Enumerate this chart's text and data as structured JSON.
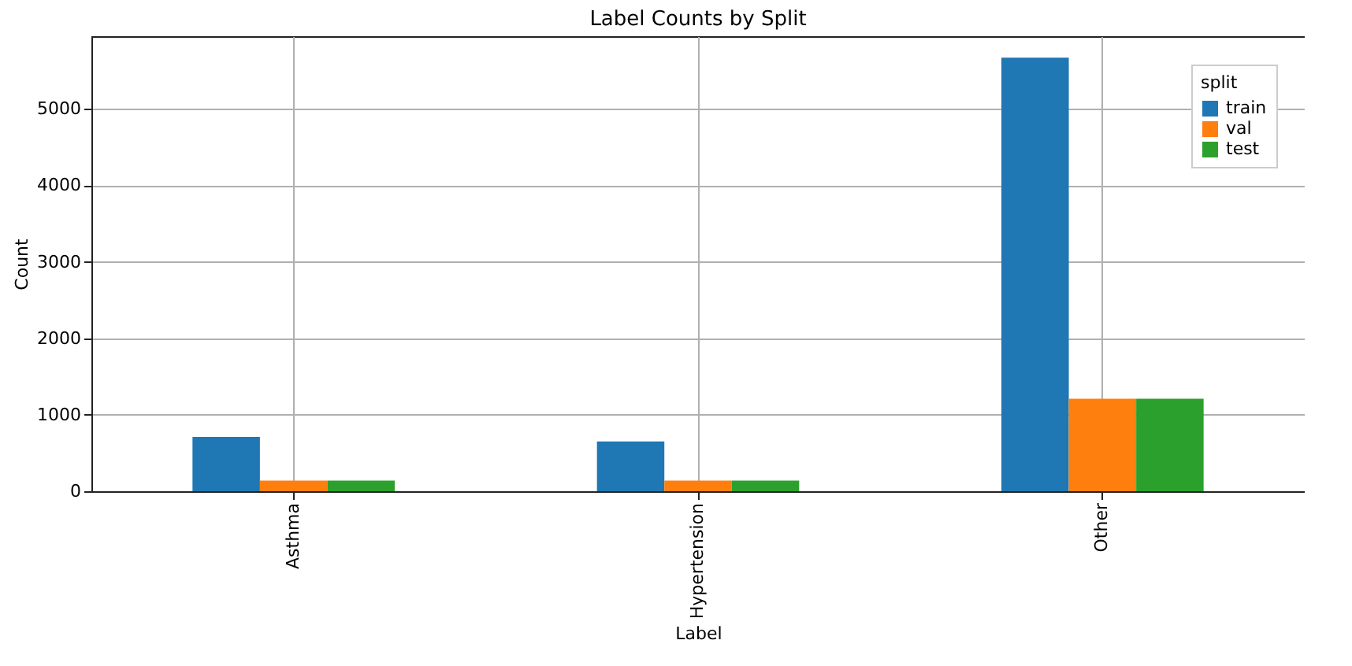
{
  "chart_data": {
    "type": "bar",
    "title": "Label Counts by Split",
    "xlabel": "Label",
    "ylabel": "Count",
    "legend_title": "split",
    "categories": [
      "Asthma",
      "Hypertension",
      "Other"
    ],
    "series": [
      {
        "name": "train",
        "color": "#1f77b4",
        "values": [
          710,
          650,
          5670
        ]
      },
      {
        "name": "val",
        "color": "#ff7f0e",
        "values": [
          140,
          140,
          1210
        ]
      },
      {
        "name": "test",
        "color": "#2ca02c",
        "values": [
          140,
          140,
          1210
        ]
      }
    ],
    "ylim": [
      0,
      5950
    ],
    "yticks": [
      0,
      1000,
      2000,
      3000,
      4000,
      5000
    ],
    "grid": true,
    "legend": "top right"
  }
}
